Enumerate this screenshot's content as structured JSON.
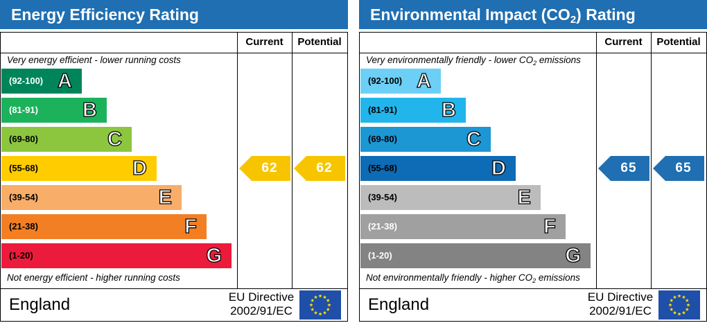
{
  "panels": [
    {
      "title": "Energy Efficiency Rating",
      "title_sub": "",
      "title_tail": "",
      "current_label": "Current",
      "potential_label": "Potential",
      "top_note": "Very energy efficient - lower running costs",
      "top_note_sub": "",
      "top_note_tail": "",
      "bottom_note": "Not energy efficient - higher running costs",
      "bottom_note_sub": "",
      "bottom_note_tail": "",
      "country": "England",
      "directive_line1": "EU Directive",
      "directive_line2": "2002/91/EC",
      "arrow_color": "#f7c500"
    },
    {
      "title": "Environmental Impact (CO",
      "title_sub": "2",
      "title_tail": ") Rating",
      "current_label": "Current",
      "potential_label": "Potential",
      "top_note": "Very environmentally friendly - lower CO",
      "top_note_sub": "2",
      "top_note_tail": " emissions",
      "bottom_note": "Not environmentally friendly - higher CO",
      "bottom_note_sub": "2",
      "bottom_note_tail": " emissions",
      "country": "England",
      "directive_line1": "EU Directive",
      "directive_line2": "2002/91/EC",
      "arrow_color": "#1f6fb2"
    }
  ],
  "chart_data": [
    {
      "type": "bar",
      "title": "Energy Efficiency Rating",
      "categories": [
        "A",
        "B",
        "C",
        "D",
        "E",
        "F",
        "G"
      ],
      "ranges": [
        "(92-100)",
        "(81-91)",
        "(69-80)",
        "(55-68)",
        "(39-54)",
        "(21-38)",
        "(1-20)"
      ],
      "colors": [
        "#00855a",
        "#1cb25c",
        "#8cc63f",
        "#ffcc00",
        "#f8ae69",
        "#f27f24",
        "#ed1b3b"
      ],
      "range_text_colors": [
        "#ffffff",
        "#ffffff",
        "#000000",
        "#000000",
        "#000000",
        "#000000",
        "#000000"
      ],
      "current": 62,
      "potential": 62,
      "current_band": "D",
      "potential_band": "D"
    },
    {
      "type": "bar",
      "title": "Environmental Impact (CO2) Rating",
      "categories": [
        "A",
        "B",
        "C",
        "D",
        "E",
        "F",
        "G"
      ],
      "ranges": [
        "(92-100)",
        "(81-91)",
        "(69-80)",
        "(55-68)",
        "(39-54)",
        "(21-38)",
        "(1-20)"
      ],
      "colors": [
        "#6ccff6",
        "#22b5ec",
        "#1d96d4",
        "#0e6bb5",
        "#bcbcbc",
        "#a0a0a0",
        "#838383"
      ],
      "range_text_colors": [
        "#000000",
        "#000000",
        "#000000",
        "#000000",
        "#000000",
        "#ffffff",
        "#ffffff"
      ],
      "current": 65,
      "potential": 65,
      "current_band": "D",
      "potential_band": "D"
    }
  ]
}
